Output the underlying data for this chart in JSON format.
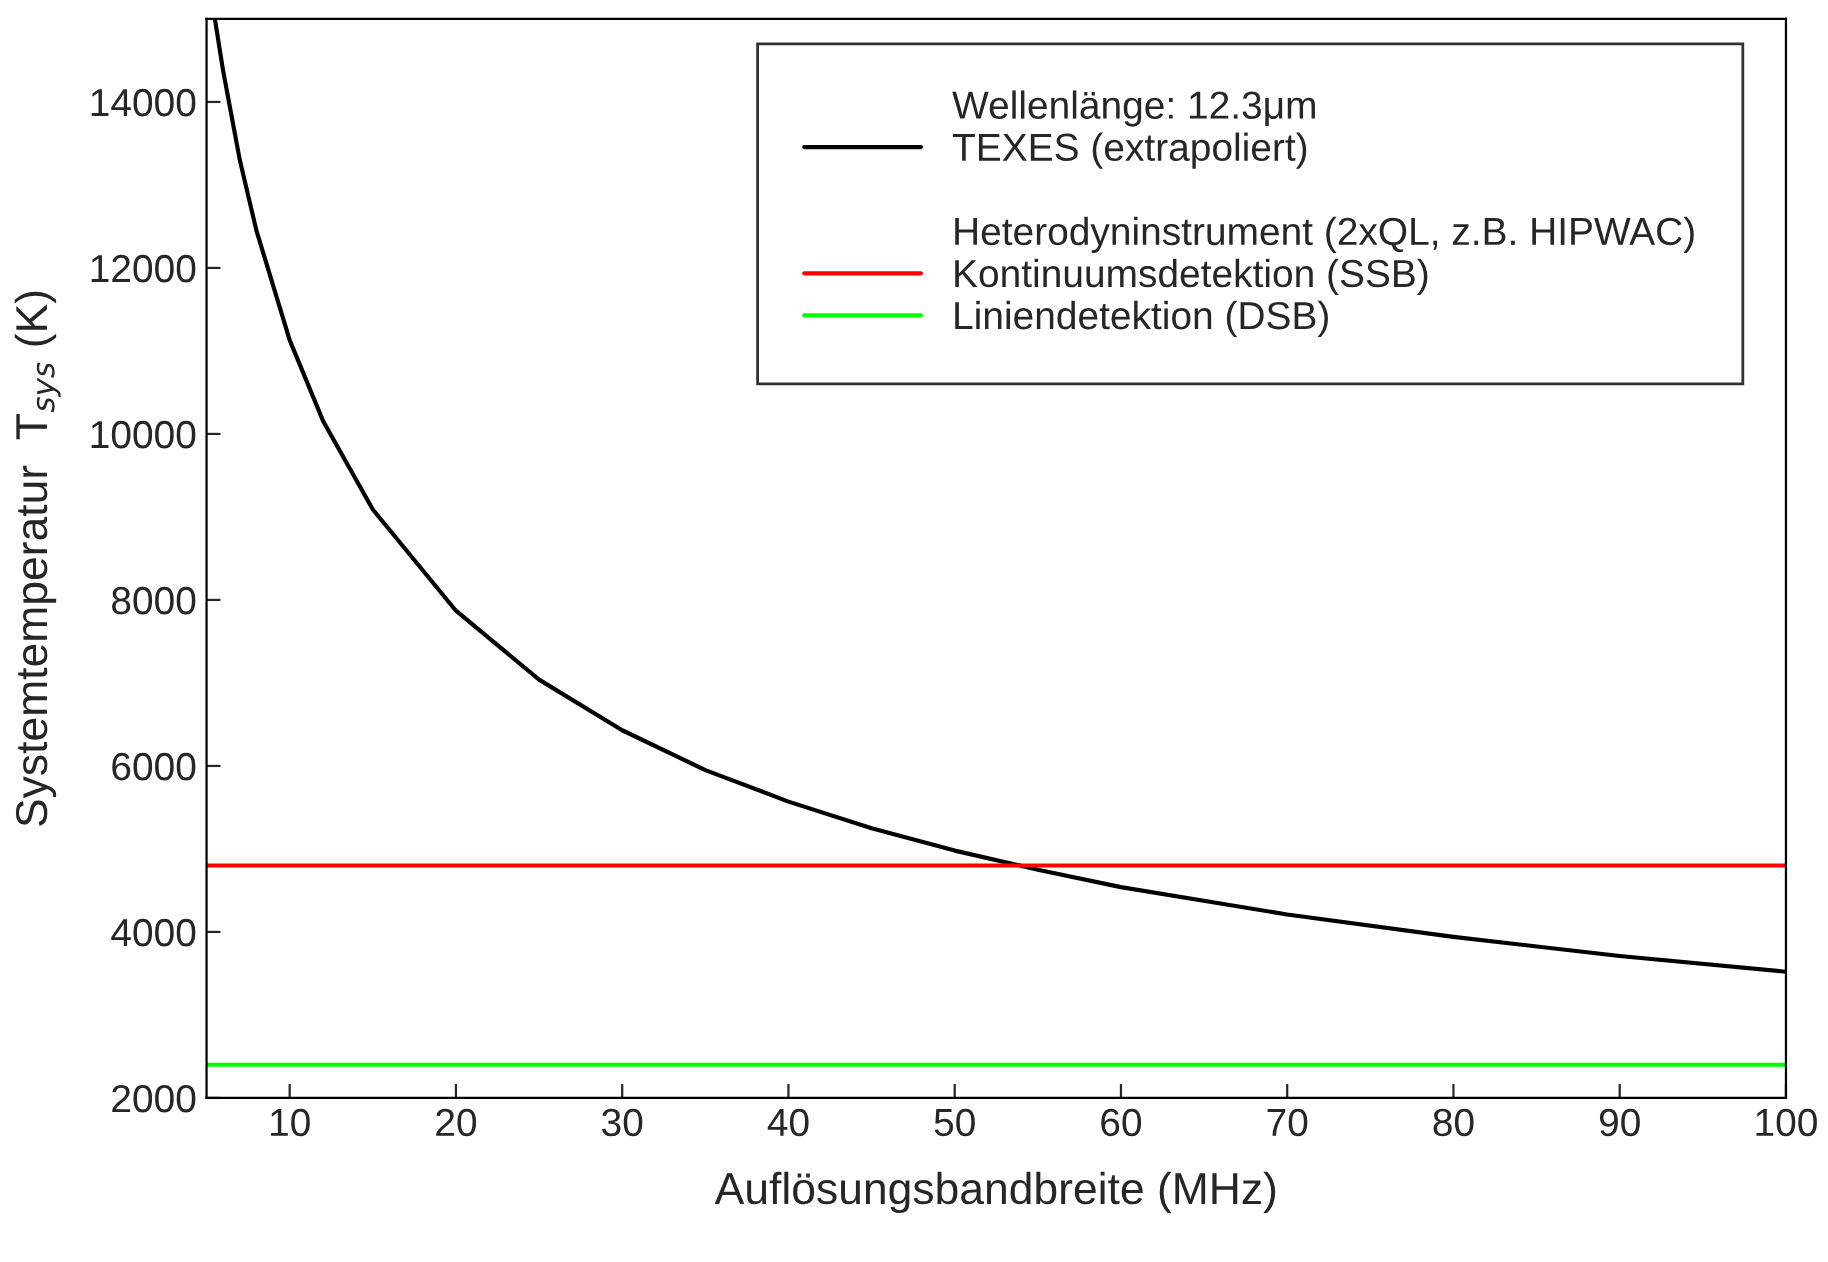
{
  "chart_data": {
    "type": "line",
    "xlabel": "Auflösungsbandbreite (MHz)",
    "ylabel": "Systemtemperatur  T$_{sys}$ (K)",
    "xlim": [
      5,
      100
    ],
    "xticks": [
      10,
      20,
      30,
      40,
      50,
      60,
      70,
      80,
      90,
      100
    ],
    "ylim": [
      2000,
      15000
    ],
    "yticks": [
      2000,
      4000,
      6000,
      8000,
      10000,
      12000,
      14000
    ],
    "grid": false,
    "legend": "top right",
    "marker": "none",
    "line_style": "solid",
    "annotations": [
      "Wellenlänge: 12.3μm",
      "Heterodyninstrument (2xQL, z.B. HIPWAC)"
    ],
    "series": [
      {
        "name": "TEXES (extrapoliert)",
        "color": "#000000",
        "x": [
          5.5,
          6,
          7,
          8,
          10,
          12,
          15,
          20,
          25,
          30,
          35,
          40,
          45,
          50,
          55,
          60,
          70,
          80,
          90,
          100
        ],
        "values": [
          15000,
          14370,
          13300,
          12450,
          11130,
          10160,
          9090,
          7870,
          7040,
          6430,
          5950,
          5570,
          5250,
          4980,
          4750,
          4540,
          4210,
          3940,
          3710,
          3520
        ]
      },
      {
        "name": "Kontinuumsdetektion (SSB)",
        "color": "#ff0000",
        "x": [
          5,
          100
        ],
        "values": [
          4800,
          4800
        ]
      },
      {
        "name": "Liniendetektion (DSB)",
        "color": "#00ff00",
        "x": [
          5,
          100
        ],
        "values": [
          2400,
          2400
        ]
      }
    ]
  }
}
